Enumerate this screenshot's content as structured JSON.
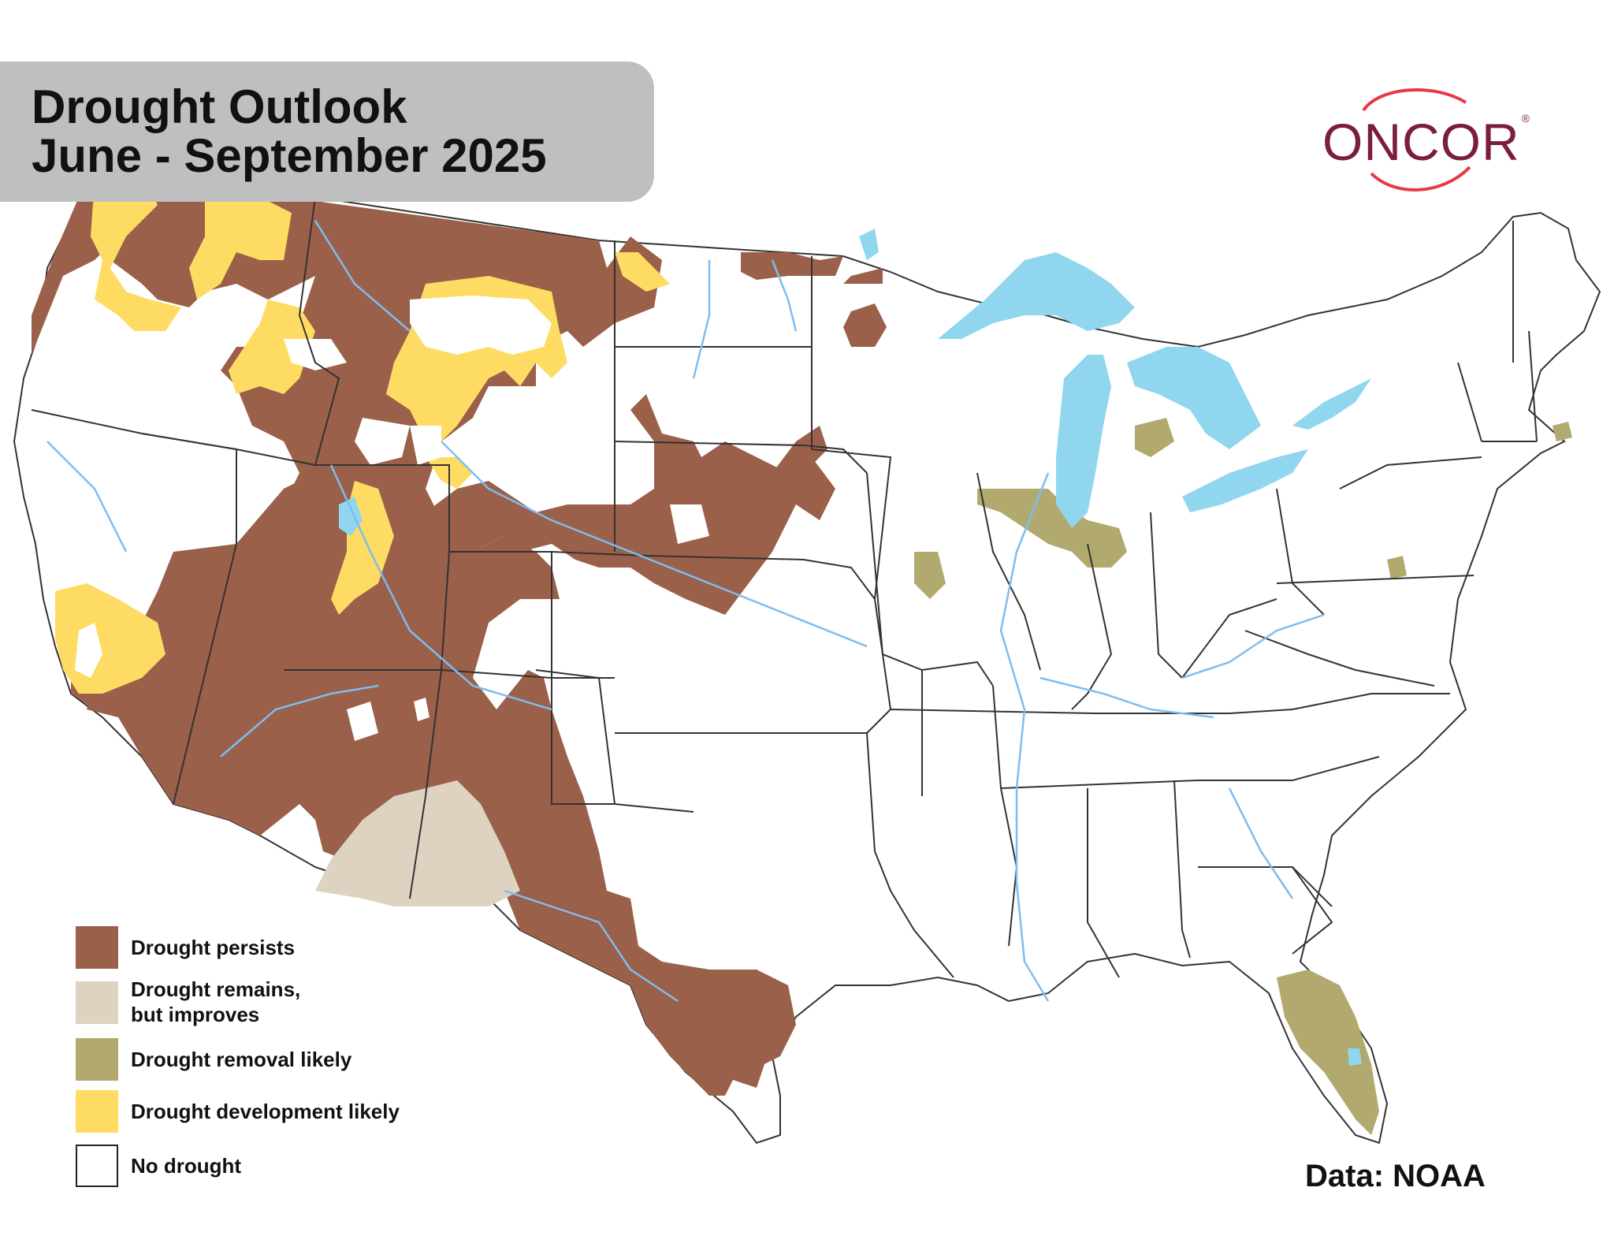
{
  "title": {
    "line1": "Drought Outlook",
    "line2": "June - September 2025"
  },
  "logo": {
    "text": "ONCOR",
    "mark": "®",
    "color": "#7a1d3e",
    "swoosh_color": "#e63946"
  },
  "legend": {
    "items": [
      {
        "label": "Drought persists",
        "color": "#9a6049"
      },
      {
        "label_line1": "Drought remains,",
        "label_line2": "but improves",
        "color": "#ddd3c0"
      },
      {
        "label": "Drought removal likely",
        "color": "#b2a96e"
      },
      {
        "label": "Drought development likely",
        "color": "#fedc64"
      },
      {
        "label": "No drought",
        "color": "#ffffff"
      }
    ]
  },
  "source": "Data: NOAA",
  "colors": {
    "water": "#8fd6ee",
    "rivers": "#7fbcf0",
    "borders": "#333333"
  },
  "icons": {
    "map": "united-states-map"
  }
}
